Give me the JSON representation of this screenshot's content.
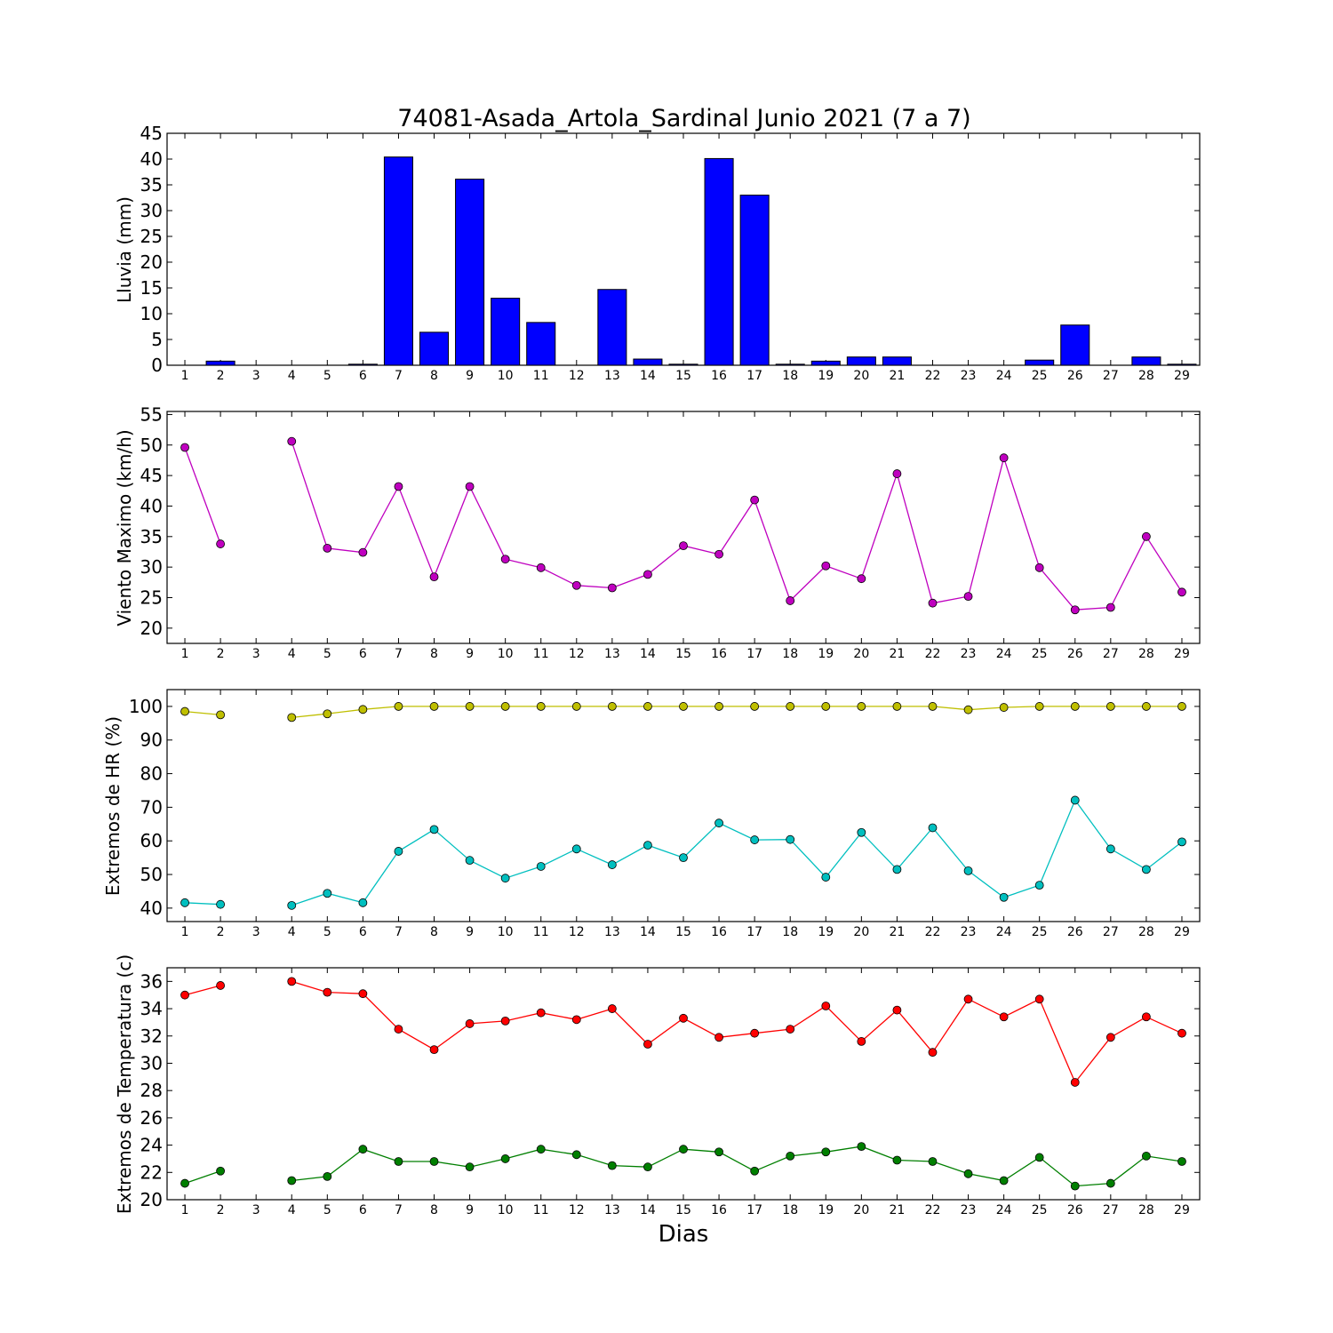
{
  "chart_data": [
    {
      "type": "bar",
      "title": "74081-Asada_Artola_Sardinal Junio 2021  (7 a 7)",
      "ylabel": "Lluvia (mm)",
      "ylim": [
        0,
        45
      ],
      "yticks": [
        0,
        5,
        10,
        15,
        20,
        25,
        30,
        35,
        40,
        45
      ],
      "x": [
        1,
        2,
        3,
        4,
        5,
        6,
        7,
        8,
        9,
        10,
        11,
        12,
        13,
        14,
        15,
        16,
        17,
        18,
        19,
        20,
        21,
        22,
        23,
        24,
        25,
        26,
        27,
        28,
        29
      ],
      "series": [
        {
          "color": "#0000ff",
          "values": [
            0,
            0.8,
            0,
            0,
            0,
            0.2,
            40.4,
            6.4,
            36.1,
            13,
            8.3,
            0,
            14.7,
            1.2,
            0.2,
            40.1,
            33,
            0.2,
            0.8,
            1.6,
            1.6,
            0,
            0,
            0,
            1,
            7.8,
            0,
            1.6,
            0.2
          ]
        }
      ],
      "grid": false
    },
    {
      "type": "line",
      "ylabel": "Viento Maximo (km/h)",
      "ylim": [
        17.5,
        55.5
      ],
      "yticks": [
        20,
        25,
        30,
        35,
        40,
        45,
        50,
        55
      ],
      "x": [
        1,
        2,
        3,
        4,
        5,
        6,
        7,
        8,
        9,
        10,
        11,
        12,
        13,
        14,
        15,
        16,
        17,
        18,
        19,
        20,
        21,
        22,
        23,
        24,
        25,
        26,
        27,
        28,
        29
      ],
      "series": [
        {
          "color": "#bf00bf",
          "values": [
            49.6,
            33.8,
            null,
            50.6,
            33.1,
            32.4,
            43.2,
            28.4,
            43.2,
            31.3,
            29.9,
            27,
            26.6,
            28.8,
            33.5,
            32.1,
            41,
            24.5,
            30.2,
            28.1,
            45.3,
            24.1,
            25.2,
            47.9,
            29.9,
            23,
            23.4,
            35,
            25.9
          ]
        }
      ],
      "grid": false
    },
    {
      "type": "line",
      "ylabel": "Extremos de HR (%)",
      "ylim": [
        36,
        105
      ],
      "yticks": [
        40,
        50,
        60,
        70,
        80,
        90,
        100
      ],
      "x": [
        1,
        2,
        3,
        4,
        5,
        6,
        7,
        8,
        9,
        10,
        11,
        12,
        13,
        14,
        15,
        16,
        17,
        18,
        19,
        20,
        21,
        22,
        23,
        24,
        25,
        26,
        27,
        28,
        29
      ],
      "series": [
        {
          "color": "#bfbf00",
          "values": [
            98.5,
            97.5,
            null,
            96.7,
            97.8,
            99.1,
            100,
            100,
            100,
            100,
            100,
            100,
            100,
            100,
            100,
            100,
            100,
            100,
            100,
            100,
            100,
            100,
            99,
            99.7,
            100,
            100,
            100,
            100,
            100
          ]
        },
        {
          "color": "#00bfbf",
          "values": [
            41.6,
            41.1,
            null,
            40.8,
            44.4,
            41.6,
            56.9,
            63.4,
            54.2,
            48.9,
            52.4,
            57.6,
            52.9,
            58.7,
            55,
            65.3,
            60.3,
            60.4,
            49.2,
            62.5,
            51.5,
            63.9,
            51.1,
            43.2,
            46.8,
            72.1,
            57.6,
            51.5,
            59.7
          ]
        }
      ],
      "grid": false
    },
    {
      "type": "line",
      "ylabel": "Extremos de Temperatura (c)",
      "xlabel": "Dias",
      "ylim": [
        20,
        37
      ],
      "yticks": [
        20,
        22,
        24,
        26,
        28,
        30,
        32,
        34,
        36
      ],
      "x": [
        1,
        2,
        3,
        4,
        5,
        6,
        7,
        8,
        9,
        10,
        11,
        12,
        13,
        14,
        15,
        16,
        17,
        18,
        19,
        20,
        21,
        22,
        23,
        24,
        25,
        26,
        27,
        28,
        29
      ],
      "series": [
        {
          "color": "#ff0000",
          "values": [
            35,
            35.7,
            null,
            36,
            35.2,
            35.1,
            32.5,
            31,
            32.9,
            33.1,
            33.7,
            33.2,
            34,
            31.4,
            33.3,
            31.9,
            32.2,
            32.5,
            34.2,
            31.6,
            33.9,
            30.8,
            34.7,
            33.4,
            34.7,
            28.6,
            31.9,
            33.4,
            32.2
          ]
        },
        {
          "color": "#007f00",
          "values": [
            21.2,
            22.1,
            null,
            21.4,
            21.7,
            23.7,
            22.8,
            22.8,
            22.4,
            23,
            23.7,
            23.3,
            22.5,
            22.4,
            23.7,
            23.5,
            22.1,
            23.2,
            23.5,
            23.9,
            22.9,
            22.8,
            21.9,
            21.4,
            23.1,
            21,
            21.2,
            23.2,
            22.8
          ]
        }
      ],
      "grid": false
    }
  ]
}
